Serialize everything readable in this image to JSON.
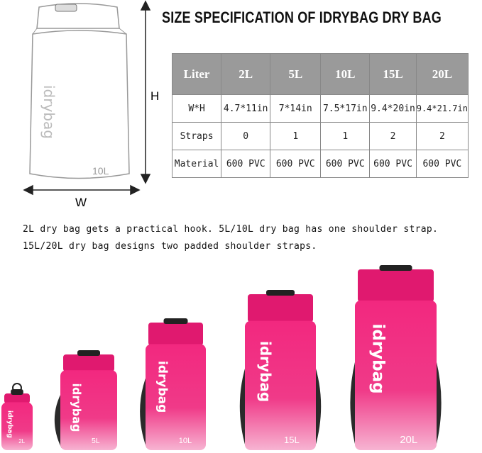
{
  "title": "SIZE SPECIFICATION OF IDRYBAG DRY BAG",
  "diagram": {
    "height_label": "H",
    "width_label": "W",
    "bag_size_label": "10L",
    "brand_text": "idrybag"
  },
  "table": {
    "header": [
      "Liter",
      "2L",
      "5L",
      "10L",
      "15L",
      "20L"
    ],
    "rows": [
      [
        "W*H",
        "4.7*11in",
        "7*14in",
        "7.5*17in",
        "9.4*20in",
        "9.4*21.7in"
      ],
      [
        "Straps",
        "0",
        "1",
        "1",
        "2",
        "2"
      ],
      [
        "Material",
        "600 PVC",
        "600 PVC",
        "600 PVC",
        "600 PVC",
        "600 PVC"
      ]
    ]
  },
  "description": [
    "2L dry bag gets a practical hook. 5L/10L dry bag has one shoulder strap.",
    "15L/20L dry bag designs two padded shoulder straps."
  ],
  "bags": [
    {
      "size": "2L"
    },
    {
      "size": "5L"
    },
    {
      "size": "10L"
    },
    {
      "size": "15L"
    },
    {
      "size": "20L"
    }
  ],
  "colors": {
    "bag": "#f2287f",
    "header": "#9a9a9a",
    "strap": "#2a2a2a"
  }
}
